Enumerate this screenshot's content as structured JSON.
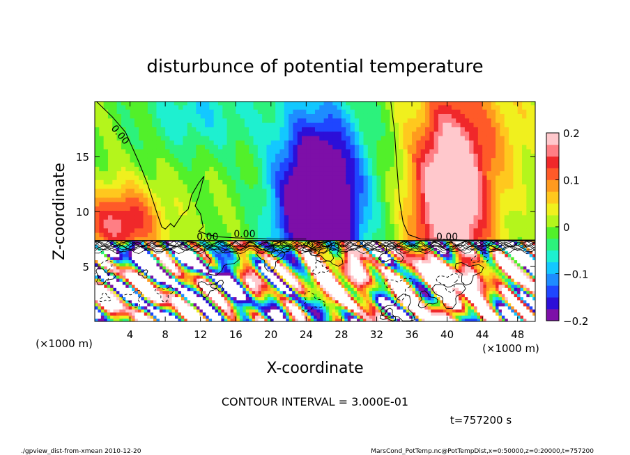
{
  "chart_data": {
    "type": "heatmap",
    "title": "disturbunce of potential temperature",
    "xlabel": "X-coordinate",
    "ylabel": "Z-coordinate",
    "x_unit": "(×1000 m)",
    "y_unit": "(×1000 m)",
    "xlim": [
      0,
      50
    ],
    "ylim": [
      0,
      20
    ],
    "x_ticks": [
      4,
      8,
      12,
      16,
      20,
      24,
      28,
      32,
      36,
      40,
      44,
      48
    ],
    "y_ticks": [
      5,
      10,
      15
    ],
    "colorbar": {
      "range": [
        -0.2,
        0.2
      ],
      "tick_values": [
        0.2,
        0.1,
        0,
        -0.1,
        -0.2
      ],
      "tick_labels": [
        "0.2",
        "0.1",
        "0",
        "−0.1",
        "−0.2"
      ],
      "colors": [
        "#7d0fa8",
        "#2c0fd8",
        "#1f46ff",
        "#1e8cff",
        "#13c8ff",
        "#1ef0d0",
        "#2cf27c",
        "#52f02a",
        "#b4f51c",
        "#f0f01e",
        "#ffc81e",
        "#ff9a1e",
        "#ff5a28",
        "#f0282a",
        "#ff7e84",
        "#ffc8cc"
      ]
    },
    "contour_interval": "CONTOUR INTERVAL = 3.000E-01",
    "contour_labels": [
      "0.00",
      "0.00",
      "0.00",
      "0.00"
    ],
    "time_label": "t=757200 s",
    "field_regions": [
      {
        "name": "cold anomaly core",
        "x_center": 25.5,
        "z_center": 13.2,
        "value": -0.2
      },
      {
        "name": "warm anomaly core",
        "x_center": 40.5,
        "z_center": 11.5,
        "value": 0.2
      },
      {
        "name": "western warm layer",
        "x_center": 3,
        "z_center": 9,
        "value": 0.14
      },
      {
        "name": "turbulent lower layer",
        "z_range": [
          0,
          7.3
        ],
        "value_range": [
          -0.2,
          0.2
        ]
      }
    ]
  },
  "footer": {
    "left": "./gpview_dist-from-xmean  2010-12-20",
    "right": "MarsCond_PotTemp.nc@PotTempDist,x=0:50000,z=0:20000,t=757200"
  }
}
